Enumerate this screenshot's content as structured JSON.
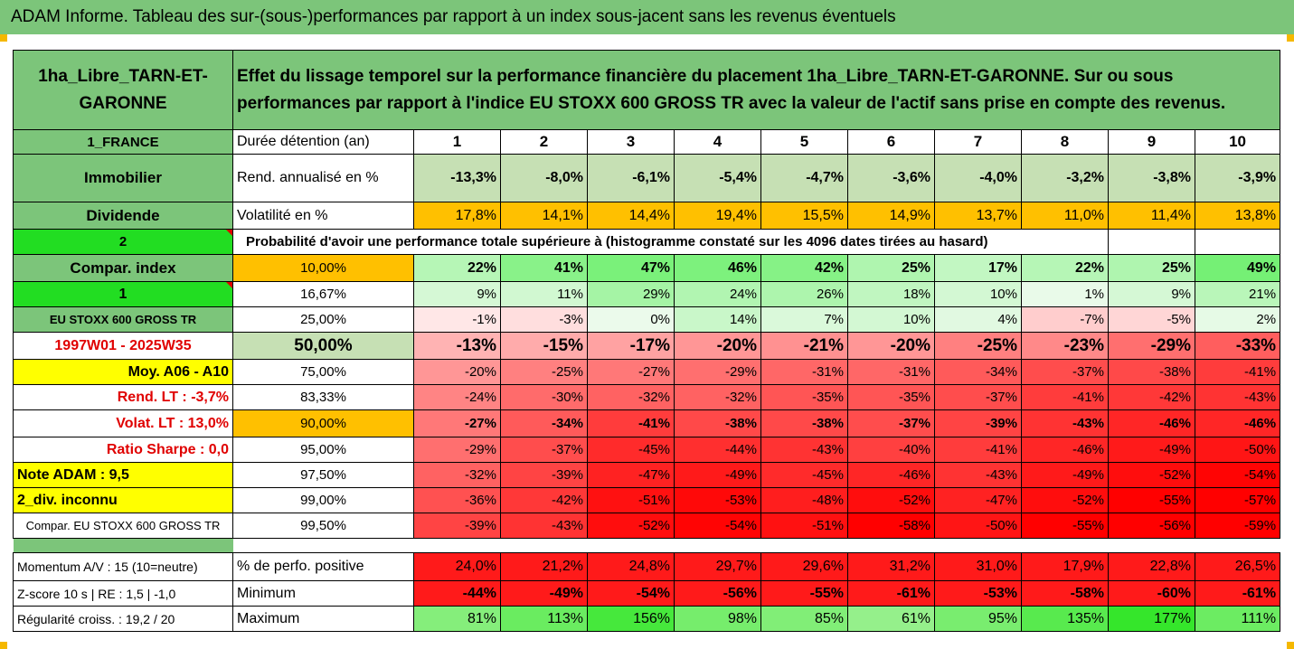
{
  "title": "ADAM Informe. Tableau des sur-(sous-)performances par rapport à un index sous-jacent sans les revenus éventuels",
  "header": {
    "asset_name": "1ha_Libre_TARN-ET-GARONNE",
    "description": "Effet du lissage temporel sur la performance financière du placement 1ha_Libre_TARN-ET-GARONNE. Sur ou sous performances par rapport à l'indice EU STOXX 600 GROSS TR avec la valeur de l'actif sans prise en compte des revenus."
  },
  "left_labels": [
    "1_FRANCE",
    "Immobilier",
    "Dividende",
    "2",
    "Compar. index",
    "1",
    "EU STOXX 600 GROSS TR",
    "1997W01 - 2025W35",
    "Moy. A06 - A10",
    "Rend. LT :   -3,7%",
    "Volat. LT :   13,0%",
    "Ratio Sharpe :   0,0",
    "Note ADAM : 9,5",
    "2_div. inconnu",
    "Compar. EU STOXX 600 GROSS TR"
  ],
  "duration_label": "Durée détention (an)",
  "years": [
    "1",
    "2",
    "3",
    "4",
    "5",
    "6",
    "7",
    "8",
    "9",
    "10"
  ],
  "rend_label": "Rend. annualisé en %",
  "rend": [
    "-13,3%",
    "-8,0%",
    "-6,1%",
    "-5,4%",
    "-4,7%",
    "-3,6%",
    "-4,0%",
    "-3,2%",
    "-3,8%",
    "-3,9%"
  ],
  "vol_label": "Volatilité en %",
  "vol": [
    "17,8%",
    "14,1%",
    "14,4%",
    "19,4%",
    "15,5%",
    "14,9%",
    "13,7%",
    "11,0%",
    "11,4%",
    "13,8%"
  ],
  "prob_label": "Probabilité d'avoir une performance totale supérieure à (histogramme constaté sur les 4096 dates tirées au hasard)",
  "quantiles": [
    {
      "q": "10,00%",
      "v": [
        "22%",
        "41%",
        "47%",
        "46%",
        "42%",
        "25%",
        "17%",
        "22%",
        "25%",
        "49%"
      ]
    },
    {
      "q": "16,67%",
      "v": [
        "9%",
        "11%",
        "29%",
        "24%",
        "26%",
        "18%",
        "10%",
        "1%",
        "9%",
        "21%"
      ]
    },
    {
      "q": "25,00%",
      "v": [
        "-1%",
        "-3%",
        "0%",
        "14%",
        "7%",
        "10%",
        "4%",
        "-7%",
        "-5%",
        "2%"
      ]
    },
    {
      "q": "50,00%",
      "v": [
        "-13%",
        "-15%",
        "-17%",
        "-20%",
        "-21%",
        "-20%",
        "-25%",
        "-23%",
        "-29%",
        "-33%"
      ]
    },
    {
      "q": "75,00%",
      "v": [
        "-20%",
        "-25%",
        "-27%",
        "-29%",
        "-31%",
        "-31%",
        "-34%",
        "-37%",
        "-38%",
        "-41%"
      ]
    },
    {
      "q": "83,33%",
      "v": [
        "-24%",
        "-30%",
        "-32%",
        "-32%",
        "-35%",
        "-35%",
        "-37%",
        "-41%",
        "-42%",
        "-43%"
      ]
    },
    {
      "q": "90,00%",
      "v": [
        "-27%",
        "-34%",
        "-41%",
        "-38%",
        "-38%",
        "-37%",
        "-39%",
        "-43%",
        "-46%",
        "-46%"
      ]
    },
    {
      "q": "95,00%",
      "v": [
        "-29%",
        "-37%",
        "-45%",
        "-44%",
        "-43%",
        "-40%",
        "-41%",
        "-46%",
        "-49%",
        "-50%"
      ]
    },
    {
      "q": "97,50%",
      "v": [
        "-32%",
        "-39%",
        "-47%",
        "-49%",
        "-45%",
        "-46%",
        "-43%",
        "-49%",
        "-52%",
        "-54%"
      ]
    },
    {
      "q": "99,00%",
      "v": [
        "-36%",
        "-42%",
        "-51%",
        "-53%",
        "-48%",
        "-52%",
        "-47%",
        "-52%",
        "-55%",
        "-57%"
      ]
    },
    {
      "q": "99,50%",
      "v": [
        "-39%",
        "-43%",
        "-52%",
        "-54%",
        "-51%",
        "-58%",
        "-50%",
        "-55%",
        "-56%",
        "-59%"
      ]
    }
  ],
  "bottom": [
    {
      "left": "Momentum A/V : 15 (10=neutre)",
      "label": "% de perfo. positive",
      "v": [
        "24,0%",
        "21,2%",
        "24,8%",
        "29,7%",
        "29,6%",
        "31,2%",
        "31,0%",
        "17,9%",
        "22,8%",
        "26,5%"
      ]
    },
    {
      "left": "Z-score 10 s  |  RE : 1,5  |  -1,0",
      "label": "Minimum",
      "v": [
        "-44%",
        "-49%",
        "-54%",
        "-56%",
        "-55%",
        "-61%",
        "-53%",
        "-58%",
        "-60%",
        "-61%"
      ]
    },
    {
      "left": "Régularité croiss. : 19,2 / 20",
      "label": "Maximum",
      "v": [
        "81%",
        "113%",
        "156%",
        "98%",
        "85%",
        "61%",
        "95%",
        "135%",
        "177%",
        "111%"
      ]
    }
  ],
  "colors": {
    "header_green": "#7cc57a",
    "bright_green": "#22dd22",
    "yellow": "#ffff00",
    "orange": "#ffc000",
    "red": "#ff0000",
    "light_green": "#c6e0b4"
  }
}
